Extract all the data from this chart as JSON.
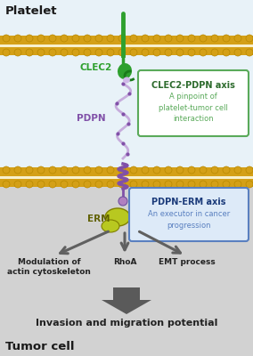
{
  "bg_color_top": "#e8f2f8",
  "bg_color_bottom": "#d2d2d2",
  "membrane_color": "#d4a017",
  "membrane_dark": "#b88800",
  "platelet_label": "Platelet",
  "tumor_label": "Tumor cell",
  "clec2_label": "CLEC2",
  "pdpn_label": "PDPN",
  "erm_label": "ERM",
  "box1_title": "CLEC2-PDPN axis",
  "box1_text": "A pinpoint of\nplatelet-tumor cell\ninteraction",
  "box1_border": "#5aaa5a",
  "box1_title_color": "#2d6b2d",
  "box1_text_color": "#5aaa5a",
  "box2_title": "PDPN-ERM axis",
  "box2_text": "An executor in cancer\nprogression",
  "box2_border": "#5a80c0",
  "box2_bg": "#ddeaf8",
  "box2_title_color": "#1a3a7a",
  "box2_text_color": "#5a80c0",
  "arrow_color": "#606060",
  "label1": "Modulation of\nactin cytoskeleton",
  "label2": "RhoA",
  "label3": "EMT process",
  "bottom_label": "Invasion and migration potential",
  "label_color": "#222222",
  "clec2_color": "#2ea02e",
  "pdpn_color": "#c0a0d8",
  "pdpn_spiral_color": "#8050a8",
  "erm_color": "#b8c820",
  "big_arrow_color": "#5a5a5a"
}
